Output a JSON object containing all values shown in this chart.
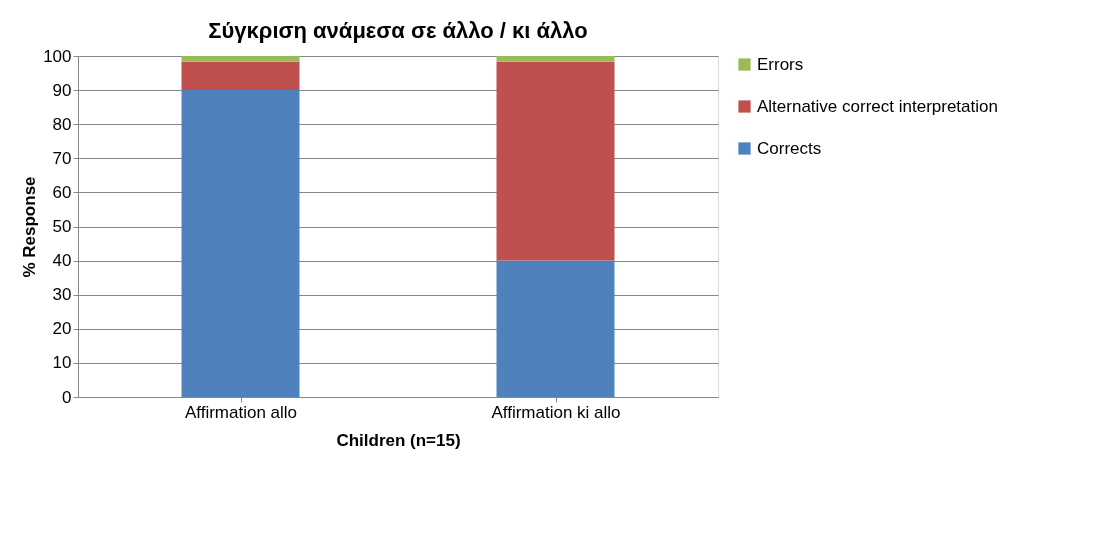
{
  "chart_data": {
    "type": "bar",
    "title": "Σύγκριση ανάμεσα σε άλλο / κι άλλο",
    "xlabel": "Children (n=15)",
    "ylabel": "% Response",
    "categories": [
      "Affirmation allo",
      "Affirmation ki allo"
    ],
    "series": [
      {
        "name": "Corrects",
        "color": "#4f81bd",
        "values": [
          90,
          40
        ]
      },
      {
        "name": "Alternative correct interpretation",
        "color": "#c0504d",
        "values": [
          8.3,
          58.3
        ]
      },
      {
        "name": "Errors",
        "color": "#9bbb59",
        "values": [
          1.7,
          1.7
        ]
      }
    ],
    "stacked": true,
    "ylim": [
      0,
      100
    ],
    "yticks": [
      0,
      10,
      20,
      30,
      40,
      50,
      60,
      70,
      80,
      90,
      100
    ],
    "grid": "y",
    "legend": "right"
  }
}
